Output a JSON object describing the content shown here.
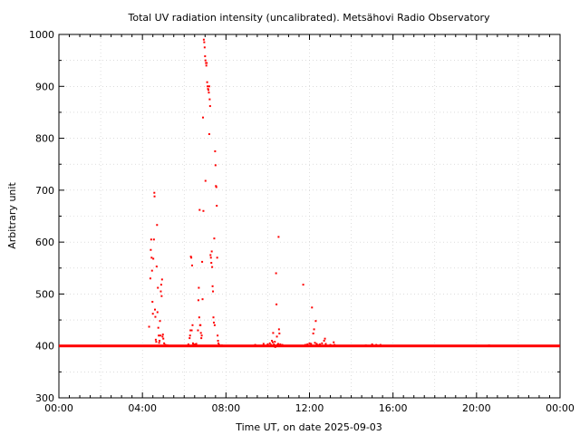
{
  "chart_data": {
    "type": "scatter",
    "title": "Total UV radiation intensity (uncalibrated). Metsähovi Radio Observatory",
    "xlabel": "Time UT, on date 2025-09-03",
    "ylabel": "Arbitrary unit",
    "xlim": [
      0,
      24
    ],
    "ylim": [
      300,
      1000
    ],
    "x_ticks": [
      0,
      4,
      8,
      12,
      16,
      20,
      24
    ],
    "x_tick_labels": [
      "00:00",
      "04:00",
      "08:00",
      "12:00",
      "16:00",
      "20:00",
      "00:00"
    ],
    "y_ticks": [
      300,
      400,
      500,
      600,
      700,
      800,
      900,
      1000
    ],
    "y_tick_labels": [
      "300",
      "400",
      "500",
      "600",
      "700",
      "800",
      "900",
      "1000"
    ],
    "grid": true,
    "marker_color": "#ff0000",
    "baseline": {
      "value": 400,
      "x_start": 0,
      "x_end": 24
    },
    "series": [
      {
        "points": [
          [
            4.32,
            437
          ],
          [
            4.38,
            530
          ],
          [
            4.4,
            585
          ],
          [
            4.42,
            605
          ],
          [
            4.44,
            570
          ],
          [
            4.46,
            545
          ],
          [
            4.48,
            485
          ],
          [
            4.5,
            462
          ],
          [
            4.52,
            568
          ],
          [
            4.55,
            605
          ],
          [
            4.57,
            695
          ],
          [
            4.58,
            688
          ],
          [
            4.6,
            470
          ],
          [
            4.62,
            456
          ],
          [
            4.64,
            412
          ],
          [
            4.66,
            408
          ],
          [
            4.68,
            553
          ],
          [
            4.7,
            633
          ],
          [
            4.72,
            465
          ],
          [
            4.74,
            512
          ],
          [
            4.76,
            435
          ],
          [
            4.78,
            420
          ],
          [
            4.8,
            406
          ],
          [
            4.82,
            410
          ],
          [
            4.84,
            448
          ],
          [
            4.86,
            420
          ],
          [
            4.88,
            505
          ],
          [
            4.9,
            518
          ],
          [
            4.92,
            496
          ],
          [
            4.94,
            528
          ],
          [
            4.96,
            418
          ],
          [
            4.98,
            422
          ],
          [
            5.0,
            414
          ],
          [
            5.04,
            405
          ],
          [
            5.1,
            402
          ],
          [
            5.2,
            401
          ],
          [
            5.4,
            400
          ],
          [
            6.2,
            403
          ],
          [
            6.26,
            415
          ],
          [
            6.28,
            420
          ],
          [
            6.3,
            430
          ],
          [
            6.32,
            572
          ],
          [
            6.34,
            570
          ],
          [
            6.36,
            430
          ],
          [
            6.38,
            555
          ],
          [
            6.4,
            440
          ],
          [
            6.42,
            405
          ],
          [
            6.44,
            402
          ],
          [
            6.52,
            403
          ],
          [
            6.58,
            404
          ],
          [
            6.66,
            430
          ],
          [
            6.68,
            488
          ],
          [
            6.7,
            512
          ],
          [
            6.72,
            455
          ],
          [
            6.74,
            662
          ],
          [
            6.76,
            440
          ],
          [
            6.78,
            440
          ],
          [
            6.8,
            425
          ],
          [
            6.82,
            415
          ],
          [
            6.84,
            420
          ],
          [
            6.86,
            562
          ],
          [
            6.88,
            490
          ],
          [
            6.9,
            840
          ],
          [
            6.92,
            660
          ],
          [
            6.94,
            990
          ],
          [
            6.96,
            985
          ],
          [
            6.98,
            975
          ],
          [
            7.0,
            958
          ],
          [
            7.02,
            950
          ],
          [
            7.04,
            945
          ],
          [
            7.06,
            940
          ],
          [
            7.08,
            945
          ],
          [
            7.1,
            908
          ],
          [
            7.12,
            900
          ],
          [
            7.14,
            895
          ],
          [
            7.16,
            893
          ],
          [
            7.18,
            888
          ],
          [
            7.2,
            900
          ],
          [
            7.02,
            718
          ],
          [
            7.2,
            808
          ],
          [
            7.22,
            875
          ],
          [
            7.24,
            862
          ],
          [
            7.26,
            575
          ],
          [
            7.28,
            570
          ],
          [
            7.3,
            560
          ],
          [
            7.32,
            582
          ],
          [
            7.34,
            552
          ],
          [
            7.36,
            515
          ],
          [
            7.38,
            505
          ],
          [
            7.4,
            455
          ],
          [
            7.42,
            445
          ],
          [
            7.44,
            607
          ],
          [
            7.46,
            440
          ],
          [
            7.48,
            775
          ],
          [
            7.5,
            748
          ],
          [
            7.52,
            708
          ],
          [
            7.54,
            706
          ],
          [
            7.56,
            670
          ],
          [
            7.58,
            570
          ],
          [
            7.6,
            420
          ],
          [
            7.62,
            410
          ],
          [
            7.64,
            405
          ],
          [
            7.68,
            402
          ],
          [
            7.8,
            401
          ],
          [
            9.4,
            402
          ],
          [
            9.8,
            404
          ],
          [
            10.0,
            403
          ],
          [
            10.1,
            405
          ],
          [
            10.16,
            402
          ],
          [
            10.2,
            410
          ],
          [
            10.24,
            407
          ],
          [
            10.26,
            425
          ],
          [
            10.3,
            403
          ],
          [
            10.34,
            408
          ],
          [
            10.36,
            398
          ],
          [
            10.4,
            540
          ],
          [
            10.42,
            480
          ],
          [
            10.44,
            418
          ],
          [
            10.46,
            402
          ],
          [
            10.5,
            404
          ],
          [
            10.52,
            610
          ],
          [
            10.54,
            432
          ],
          [
            10.56,
            424
          ],
          [
            10.6,
            403
          ],
          [
            10.7,
            402
          ],
          [
            11.7,
            518
          ],
          [
            11.8,
            402
          ],
          [
            11.9,
            403
          ],
          [
            12.0,
            405
          ],
          [
            12.08,
            404
          ],
          [
            12.12,
            474
          ],
          [
            12.18,
            424
          ],
          [
            12.22,
            432
          ],
          [
            12.26,
            406
          ],
          [
            12.3,
            448
          ],
          [
            12.34,
            404
          ],
          [
            12.4,
            402
          ],
          [
            12.5,
            403
          ],
          [
            12.6,
            405
          ],
          [
            12.7,
            410
          ],
          [
            12.74,
            414
          ],
          [
            12.78,
            404
          ],
          [
            13.0,
            402
          ],
          [
            13.16,
            407
          ],
          [
            13.2,
            402
          ],
          [
            14.7,
            401
          ],
          [
            15.0,
            403
          ],
          [
            15.2,
            402
          ],
          [
            15.4,
            402
          ],
          [
            20.6,
            401
          ]
        ]
      }
    ]
  }
}
